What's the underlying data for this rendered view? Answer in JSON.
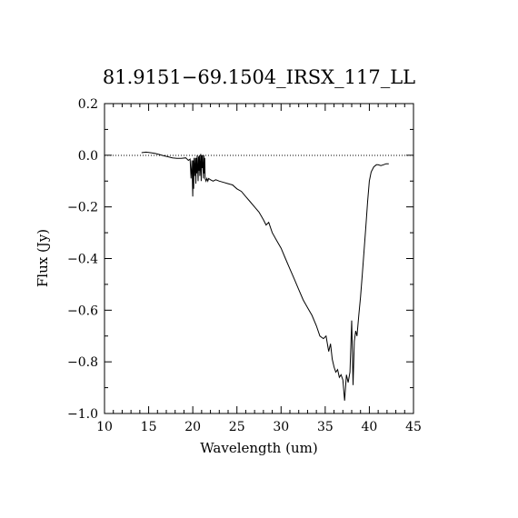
{
  "chart_data": {
    "type": "line",
    "title": "81.9151−69.1504_IRSX_117_LL",
    "xlabel": "Wavelength (um)",
    "ylabel": "Flux (Jy)",
    "xlim": [
      10,
      45
    ],
    "ylim": [
      -1.0,
      0.2
    ],
    "x_ticks": [
      10,
      15,
      20,
      25,
      30,
      35,
      40,
      45
    ],
    "y_ticks": [
      0.2,
      0.0,
      -0.2,
      -0.4,
      -0.6,
      -0.8,
      -1.0
    ],
    "x_tick_labels": [
      "10",
      "15",
      "20",
      "25",
      "30",
      "35",
      "40",
      "45"
    ],
    "y_tick_labels": [
      "0.2",
      "0.0",
      "−0.2",
      "−0.4",
      "−0.6",
      "−0.8",
      "−1.0"
    ],
    "reference_line": {
      "y": 0.0,
      "style": "dotted"
    },
    "grid": false,
    "series": [
      {
        "x": [
          14.2,
          14.7,
          15.2,
          15.7,
          16.2,
          16.7,
          17.2,
          17.7,
          18.2,
          18.7,
          19.2,
          19.5,
          19.7,
          19.8,
          19.9,
          20.0,
          20.05,
          20.1,
          20.15,
          20.2,
          20.3,
          20.35,
          20.4,
          20.45,
          20.5,
          20.6,
          20.65,
          20.7,
          20.75,
          20.8,
          20.9,
          20.95,
          21.0,
          21.05,
          21.1,
          21.2,
          21.25,
          21.3,
          21.35,
          21.4,
          21.5,
          21.6,
          21.7,
          21.8,
          22.0,
          22.3,
          22.6,
          23.0,
          23.5,
          24.0,
          24.5,
          25.0,
          25.5,
          26.0,
          26.5,
          27.0,
          27.5,
          28.0,
          28.3,
          28.6,
          29.0,
          29.5,
          30.0,
          30.5,
          31.0,
          31.5,
          32.0,
          32.5,
          33.0,
          33.5,
          34.0,
          34.4,
          34.8,
          35.1,
          35.4,
          35.6,
          35.8,
          36.0,
          36.2,
          36.4,
          36.6,
          36.8,
          37.0,
          37.2,
          37.4,
          37.6,
          37.8,
          38.0,
          38.15,
          38.3,
          38.45,
          38.6,
          38.8,
          39.0,
          39.2,
          39.4,
          39.6,
          39.8,
          40.0,
          40.2,
          40.5,
          40.8,
          41.0,
          41.3,
          41.6,
          41.9,
          42.2
        ],
        "y": [
          0.01,
          0.012,
          0.01,
          0.007,
          0.003,
          -0.002,
          -0.006,
          -0.01,
          -0.012,
          -0.012,
          -0.01,
          -0.02,
          -0.015,
          -0.09,
          -0.02,
          -0.16,
          -0.02,
          -0.13,
          -0.01,
          -0.08,
          -0.01,
          -0.11,
          -0.01,
          -0.07,
          0.0,
          -0.1,
          -0.005,
          -0.06,
          0.0,
          -0.08,
          0.005,
          -0.1,
          0.0,
          -0.05,
          0.0,
          -0.09,
          0.0,
          -0.07,
          -0.01,
          -0.09,
          -0.1,
          -0.09,
          -0.1,
          -0.09,
          -0.095,
          -0.1,
          -0.095,
          -0.1,
          -0.105,
          -0.11,
          -0.115,
          -0.13,
          -0.14,
          -0.16,
          -0.18,
          -0.2,
          -0.22,
          -0.25,
          -0.27,
          -0.26,
          -0.3,
          -0.33,
          -0.36,
          -0.4,
          -0.44,
          -0.48,
          -0.52,
          -0.56,
          -0.59,
          -0.62,
          -0.66,
          -0.7,
          -0.71,
          -0.7,
          -0.76,
          -0.73,
          -0.79,
          -0.82,
          -0.84,
          -0.83,
          -0.86,
          -0.85,
          -0.87,
          -0.95,
          -0.85,
          -0.88,
          -0.84,
          -0.64,
          -0.89,
          -0.72,
          -0.68,
          -0.7,
          -0.62,
          -0.55,
          -0.46,
          -0.37,
          -0.28,
          -0.18,
          -0.1,
          -0.065,
          -0.045,
          -0.037,
          -0.037,
          -0.04,
          -0.037,
          -0.033,
          -0.033
        ]
      }
    ]
  }
}
